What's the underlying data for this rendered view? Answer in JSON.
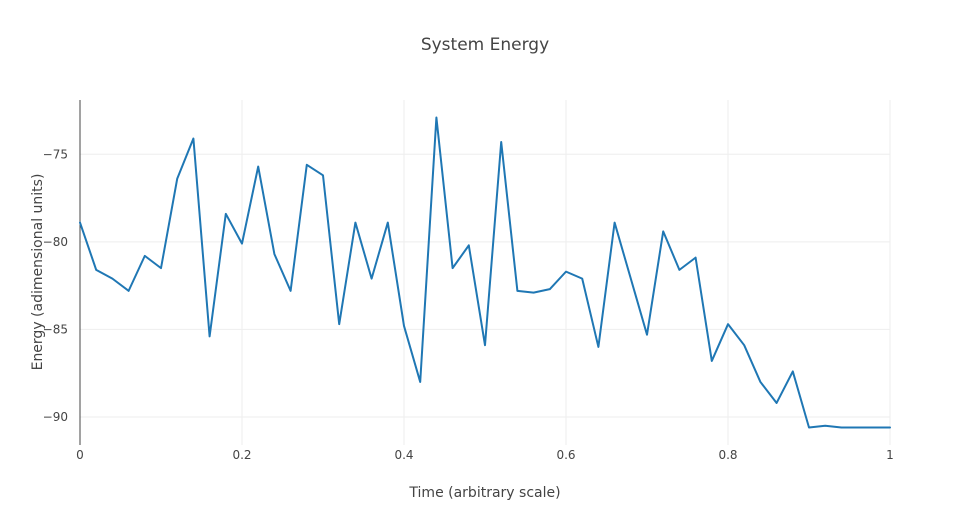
{
  "chart_data": {
    "type": "line",
    "title": "System Energy",
    "xlabel": "Time (arbitrary scale)",
    "ylabel": "Energy (adimensional units)",
    "xlim": [
      0,
      1
    ],
    "ylim": [
      -91.6,
      -71.9
    ],
    "x_ticks": [
      0,
      0.2,
      0.4,
      0.6,
      0.8,
      1
    ],
    "x_tick_labels": [
      "0",
      "0.2",
      "0.4",
      "0.6",
      "0.8",
      "1"
    ],
    "y_ticks": [
      -75,
      -80,
      -85,
      -90
    ],
    "y_tick_labels": [
      "−75",
      "−80",
      "−85",
      "−90"
    ],
    "grid": true,
    "legend": "none",
    "line_color": "#1f77b4",
    "series": [
      {
        "x": [
          0,
          0.02,
          0.04,
          0.06,
          0.08,
          0.1,
          0.12,
          0.14,
          0.16,
          0.18,
          0.2,
          0.22,
          0.24,
          0.26,
          0.28,
          0.3,
          0.32,
          0.34,
          0.36,
          0.38,
          0.4,
          0.42,
          0.44,
          0.46,
          0.48,
          0.5,
          0.52,
          0.54,
          0.56,
          0.58,
          0.6,
          0.62,
          0.64,
          0.66,
          0.68,
          0.7,
          0.72,
          0.74,
          0.76,
          0.78,
          0.8,
          0.82,
          0.84,
          0.86,
          0.88,
          0.9,
          0.92,
          0.94,
          0.96,
          0.98,
          1.0
        ],
        "y": [
          -78.9,
          -81.6,
          -82.1,
          -82.8,
          -80.8,
          -81.5,
          -76.4,
          -74.1,
          -85.4,
          -78.4,
          -80.1,
          -75.7,
          -80.7,
          -82.8,
          -75.6,
          -76.2,
          -84.7,
          -78.9,
          -82.1,
          -78.9,
          -84.8,
          -88.0,
          -72.9,
          -81.5,
          -80.2,
          -85.9,
          -74.3,
          -82.8,
          -82.9,
          -82.7,
          -81.7,
          -82.1,
          -86.0,
          -78.9,
          -82.1,
          -85.3,
          -79.4,
          -81.6,
          -80.9,
          -86.8,
          -84.7,
          -85.9,
          -88.0,
          -89.2,
          -87.4,
          -90.6,
          -90.5,
          -90.6,
          -90.6,
          -90.6,
          -90.6
        ]
      }
    ]
  }
}
